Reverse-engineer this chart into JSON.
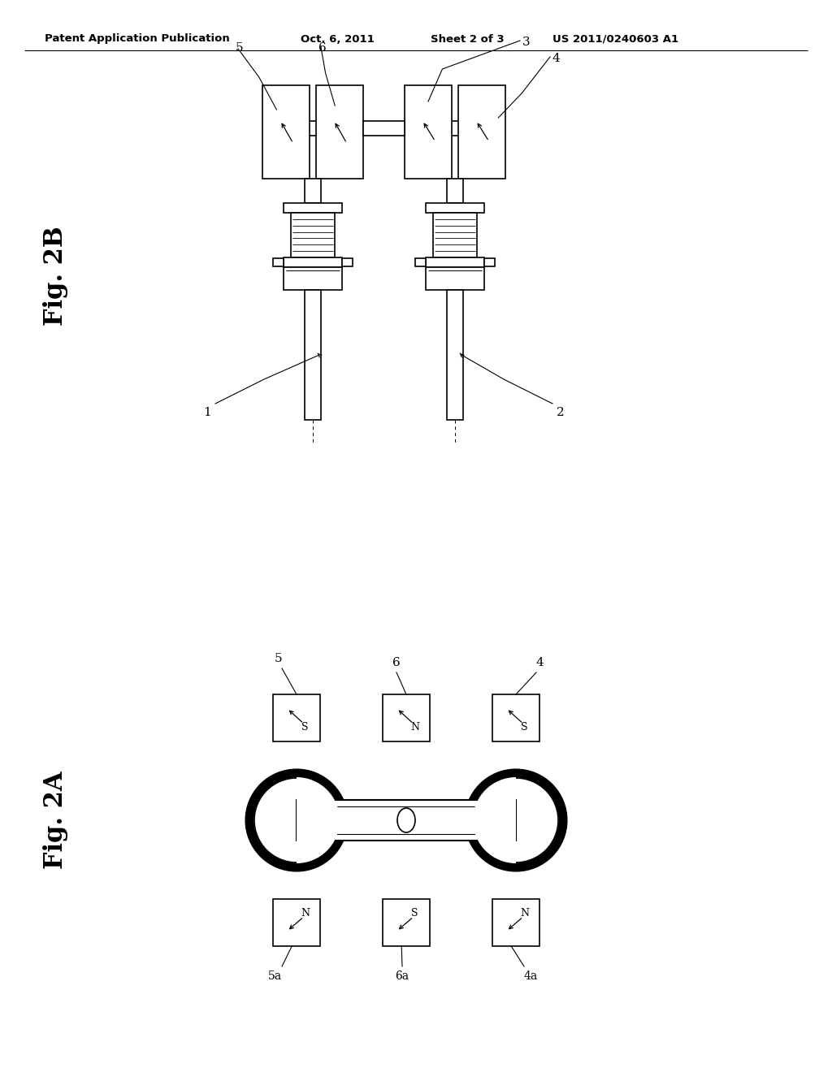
{
  "bg_color": "#ffffff",
  "line_color": "#000000",
  "fig2b_label": "Fig. 2B",
  "fig2a_label": "Fig. 2A",
  "header_left": "Patent Application Publication",
  "header_mid1": "Oct. 6, 2011",
  "header_mid2": "Sheet 2 of 3",
  "header_right": "US 2011/0240603 A1"
}
